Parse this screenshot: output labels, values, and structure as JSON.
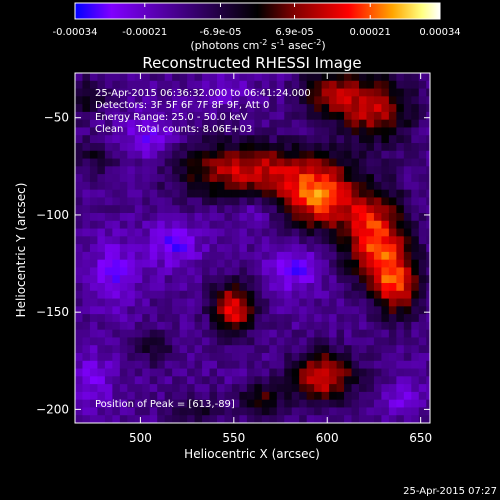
{
  "colorbar": {
    "tick_labels": [
      "-0.00034",
      "-0.00021",
      "-6.9e-05",
      "6.9e-05",
      "0.00021",
      "0.00034"
    ],
    "tick_values": [
      -0.00034,
      -0.00021,
      -6.9e-05,
      6.9e-05,
      0.00021,
      0.00034
    ],
    "range": [
      -0.00034,
      0.00034
    ],
    "units_main": "(photons cm",
    "units_exp1": "-2",
    "units_mid": " s",
    "units_exp2": "-1",
    "units_tail": " asec",
    "units_exp3": "-2",
    "units_close": ")",
    "colors": [
      "#0000ff",
      "#8000ff",
      "#000000",
      "#800000",
      "#ff0000",
      "#ffa500",
      "#ffff80",
      "#ffffff"
    ]
  },
  "chart_data": {
    "type": "heatmap",
    "title": "Reconstructed RHESSI Image",
    "xlabel": "Heliocentric X (arcsec)",
    "ylabel": "Heliocentric Y (arcsec)",
    "xlim": [
      465,
      655
    ],
    "ylim": [
      -207,
      -27
    ],
    "x_ticks": [
      500,
      550,
      600,
      650
    ],
    "y_ticks": [
      -50,
      -100,
      -150,
      -200
    ],
    "x_tick_labels": [
      "500",
      "550",
      "600",
      "650"
    ],
    "y_tick_labels": [
      "−50",
      "−100",
      "−150",
      "−200"
    ],
    "pixel_size_arcsec": 4,
    "background_level": -0.00015,
    "sources": [
      {
        "x": 555,
        "y": -77,
        "sx": 25,
        "sy": 10,
        "amp": 0.00028
      },
      {
        "x": 595,
        "y": -90,
        "sx": 14,
        "sy": 12,
        "amp": 0.00035
      },
      {
        "x": 625,
        "y": -110,
        "sx": 12,
        "sy": 16,
        "amp": 0.00033
      },
      {
        "x": 637,
        "y": -135,
        "sx": 9,
        "sy": 12,
        "amp": 0.0003
      },
      {
        "x": 625,
        "y": -45,
        "sx": 14,
        "sy": 12,
        "amp": 0.00027
      },
      {
        "x": 600,
        "y": -37,
        "sx": 10,
        "sy": 8,
        "amp": 0.00022
      },
      {
        "x": 550,
        "y": -148,
        "sx": 8,
        "sy": 9,
        "amp": 0.00032
      },
      {
        "x": 598,
        "y": -183,
        "sx": 12,
        "sy": 9,
        "amp": 0.00031
      },
      {
        "x": 565,
        "y": -195,
        "sx": 8,
        "sy": 6,
        "amp": 0.00018
      },
      {
        "x": 470,
        "y": -40,
        "sx": 8,
        "sy": 7,
        "amp": 0.00014
      },
      {
        "x": 508,
        "y": -168,
        "sx": 7,
        "sy": 6,
        "amp": 0.00012
      },
      {
        "x": 530,
        "y": -200,
        "sx": 9,
        "sy": 6,
        "amp": 0.0001
      },
      {
        "x": 475,
        "y": -70,
        "sx": 8,
        "sy": 6,
        "amp": 0.0001
      }
    ],
    "negative_sources": [
      {
        "x": 505,
        "y": -60,
        "sx": 10,
        "sy": 9,
        "amp": 0.00012
      },
      {
        "x": 518,
        "y": -115,
        "sx": 10,
        "sy": 9,
        "amp": 0.00013
      },
      {
        "x": 582,
        "y": -128,
        "sx": 10,
        "sy": 9,
        "amp": 0.00013
      },
      {
        "x": 485,
        "y": -130,
        "sx": 9,
        "sy": 12,
        "amp": 0.00012
      },
      {
        "x": 475,
        "y": -185,
        "sx": 8,
        "sy": 10,
        "amp": 0.0001
      },
      {
        "x": 560,
        "y": -100,
        "sx": 8,
        "sy": 6,
        "amp": 8e-05
      },
      {
        "x": 545,
        "y": -35,
        "sx": 8,
        "sy": 6,
        "amp": 8e-05
      },
      {
        "x": 640,
        "y": -195,
        "sx": 8,
        "sy": 6,
        "amp": 8e-05
      }
    ]
  },
  "annotation": {
    "time_range": "25-Apr-2015 06:36:32.000 to 06:41:24.000",
    "detectors": "Detectors: 3F 5F 6F 7F 8F 9F, Att 0",
    "energy": "Energy Range: 25.0 - 50.0 keV",
    "clean": "Clean    Total counts: 8.06E+03",
    "peak": "Position of Peak = [613,-89]"
  },
  "footer": {
    "timestamp": "25-Apr-2015 07:27"
  }
}
